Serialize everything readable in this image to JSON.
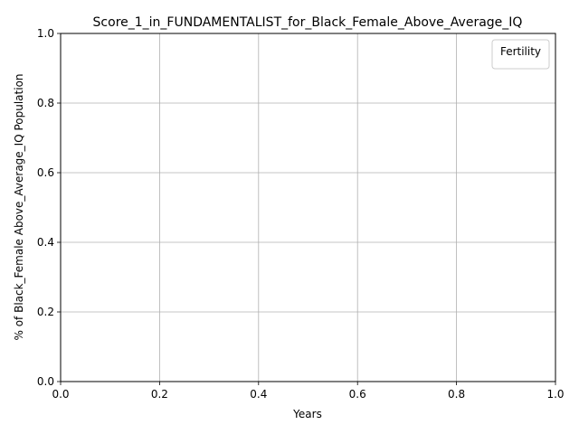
{
  "chart_data": {
    "type": "line",
    "title": "Score_1_in_FUNDAMENTALIST_for_Black_Female_Above_Average_IQ",
    "xlabel": "Years",
    "ylabel": "% of Black_Female Above_Average_IQ Population",
    "xlim": [
      0.0,
      1.0
    ],
    "ylim": [
      0.0,
      1.0
    ],
    "xticks": [
      "0.0",
      "0.2",
      "0.4",
      "0.6",
      "0.8",
      "1.0"
    ],
    "yticks": [
      "0.0",
      "0.2",
      "0.4",
      "0.6",
      "0.8",
      "1.0"
    ],
    "grid": true,
    "legend": {
      "title": "Fertility",
      "location": "upper right",
      "entries": []
    },
    "series": []
  }
}
